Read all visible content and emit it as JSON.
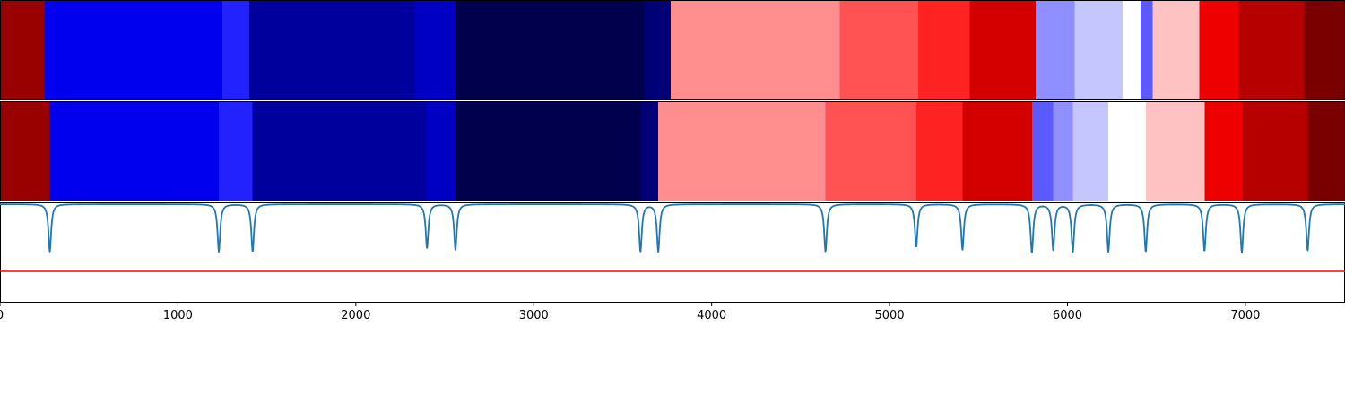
{
  "chart_data": {
    "type": "heatmap",
    "xlim": [
      0,
      7560
    ],
    "x_ticks": [
      "0",
      "1000",
      "2000",
      "3000",
      "4000",
      "5000",
      "6000",
      "7000"
    ],
    "x_tick_values": [
      0,
      1000,
      2000,
      3000,
      4000,
      5000,
      6000,
      7000
    ],
    "rows": [
      {
        "segments": [
          {
            "start": 0,
            "end": 250,
            "color": "#990000"
          },
          {
            "start": 250,
            "end": 1250,
            "color": "#0000ee"
          },
          {
            "start": 1250,
            "end": 1400,
            "color": "#2222ff"
          },
          {
            "start": 1400,
            "end": 2330,
            "color": "#00009c"
          },
          {
            "start": 2330,
            "end": 2560,
            "color": "#0000c4"
          },
          {
            "start": 2560,
            "end": 3620,
            "color": "#00004d"
          },
          {
            "start": 3620,
            "end": 3770,
            "color": "#000077"
          },
          {
            "start": 3770,
            "end": 4720,
            "color": "#ff8e8e"
          },
          {
            "start": 4720,
            "end": 5160,
            "color": "#ff5252"
          },
          {
            "start": 5160,
            "end": 5450,
            "color": "#ff2222"
          },
          {
            "start": 5450,
            "end": 5820,
            "color": "#d40000"
          },
          {
            "start": 5820,
            "end": 6040,
            "color": "#8f8fff"
          },
          {
            "start": 6040,
            "end": 6310,
            "color": "#c6c6ff"
          },
          {
            "start": 6310,
            "end": 6410,
            "color": "#ffffff"
          },
          {
            "start": 6410,
            "end": 6480,
            "color": "#5a5aff"
          },
          {
            "start": 6480,
            "end": 6740,
            "color": "#ffc2c2"
          },
          {
            "start": 6740,
            "end": 6960,
            "color": "#ee0000"
          },
          {
            "start": 6960,
            "end": 7330,
            "color": "#b60000"
          },
          {
            "start": 7330,
            "end": 7560,
            "color": "#7a0000"
          }
        ]
      },
      {
        "segments": [
          {
            "start": 0,
            "end": 280,
            "color": "#990000"
          },
          {
            "start": 280,
            "end": 1230,
            "color": "#0000ee"
          },
          {
            "start": 1230,
            "end": 1420,
            "color": "#2222ff"
          },
          {
            "start": 1420,
            "end": 2400,
            "color": "#00009c"
          },
          {
            "start": 2400,
            "end": 2560,
            "color": "#0000c4"
          },
          {
            "start": 2560,
            "end": 3600,
            "color": "#00004d"
          },
          {
            "start": 3600,
            "end": 3700,
            "color": "#000077"
          },
          {
            "start": 3700,
            "end": 4640,
            "color": "#ff8e8e"
          },
          {
            "start": 4640,
            "end": 5150,
            "color": "#ff5252"
          },
          {
            "start": 5150,
            "end": 5410,
            "color": "#ff2222"
          },
          {
            "start": 5410,
            "end": 5800,
            "color": "#d40000"
          },
          {
            "start": 5800,
            "end": 5920,
            "color": "#5a5aff"
          },
          {
            "start": 5920,
            "end": 6030,
            "color": "#8f8fff"
          },
          {
            "start": 6030,
            "end": 6230,
            "color": "#c6c6ff"
          },
          {
            "start": 6230,
            "end": 6440,
            "color": "#ffffff"
          },
          {
            "start": 6440,
            "end": 6770,
            "color": "#ffc2c2"
          },
          {
            "start": 6770,
            "end": 6980,
            "color": "#ee0000"
          },
          {
            "start": 6980,
            "end": 7350,
            "color": "#b60000"
          },
          {
            "start": 7350,
            "end": 7560,
            "color": "#7a0000"
          }
        ]
      }
    ],
    "dips": [
      {
        "x": 280,
        "depth": 1.0
      },
      {
        "x": 1230,
        "depth": 1.0
      },
      {
        "x": 1420,
        "depth": 1.0
      },
      {
        "x": 2400,
        "depth": 0.93
      },
      {
        "x": 2560,
        "depth": 0.96
      },
      {
        "x": 3600,
        "depth": 1.0
      },
      {
        "x": 3700,
        "depth": 1.0
      },
      {
        "x": 4640,
        "depth": 1.0
      },
      {
        "x": 5150,
        "depth": 0.9
      },
      {
        "x": 5410,
        "depth": 0.96
      },
      {
        "x": 5800,
        "depth": 1.02
      },
      {
        "x": 5920,
        "depth": 0.96
      },
      {
        "x": 6030,
        "depth": 1.0
      },
      {
        "x": 6230,
        "depth": 1.0
      },
      {
        "x": 6440,
        "depth": 1.0
      },
      {
        "x": 6770,
        "depth": 0.99
      },
      {
        "x": 6980,
        "depth": 1.02
      },
      {
        "x": 7350,
        "depth": 0.98
      }
    ],
    "line_color": "#1f77b4",
    "threshold_color": "#ff0000"
  }
}
